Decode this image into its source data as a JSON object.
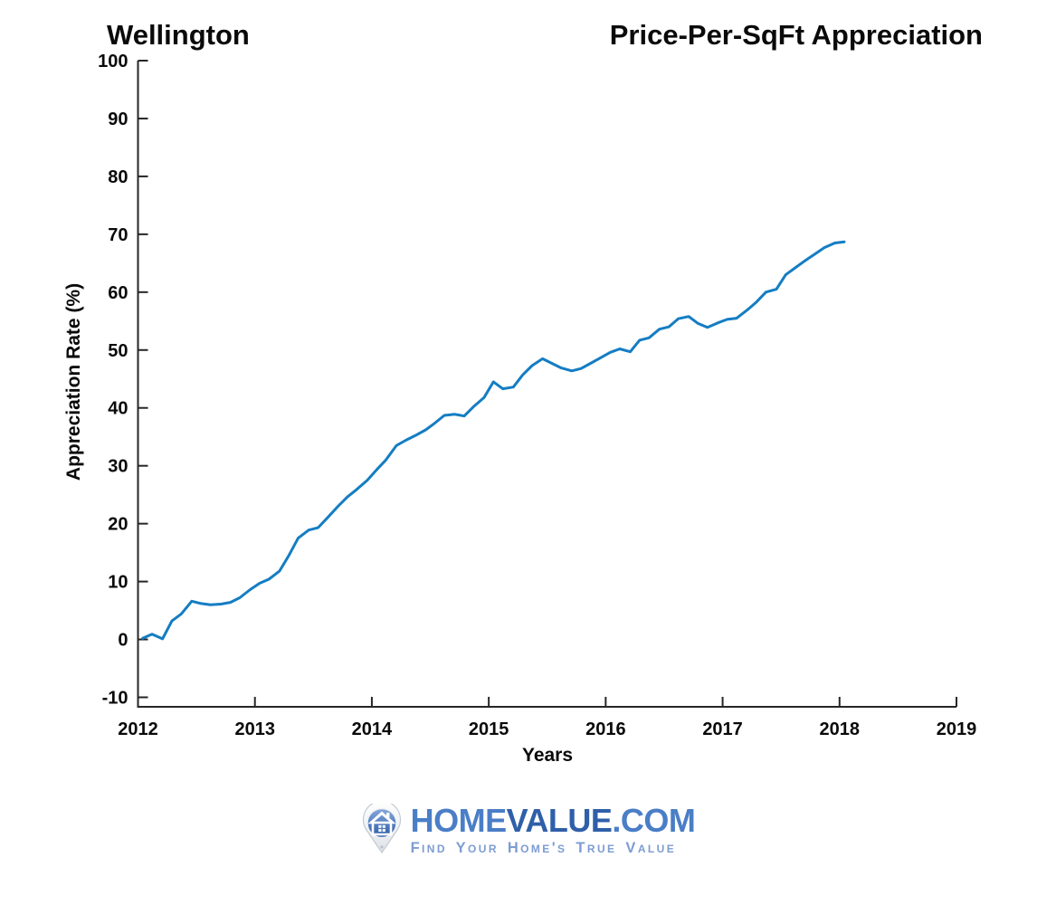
{
  "titles": {
    "left": "Wellington",
    "right": "Price-Per-SqFt Appreciation"
  },
  "axes": {
    "xlabel": "Years",
    "ylabel": "Appreciation Rate (%)"
  },
  "logo": {
    "home": "HOME",
    "value": "VALUE",
    "com": ".COM",
    "tagline": "Find Your Home's True Value"
  },
  "colors": {
    "line": "#147dc3",
    "axis": "#262626",
    "brand_light": "#4a7ec6",
    "brand_dark": "#2f5fa9",
    "tagline": "#7d9cd1"
  },
  "chart_data": {
    "type": "line",
    "title": "Wellington — Price-Per-SqFt Appreciation",
    "xlabel": "Years",
    "ylabel": "Appreciation Rate (%)",
    "xlim": [
      2012,
      2019
    ],
    "ylim": [
      -10,
      100
    ],
    "xticks": [
      2012,
      2013,
      2014,
      2015,
      2016,
      2017,
      2018,
      2019
    ],
    "yticks": [
      -10,
      0,
      10,
      20,
      30,
      40,
      50,
      60,
      70,
      80,
      90,
      100
    ],
    "grid": false,
    "legend": null,
    "series": [
      {
        "name": "Wellington price-per-sqft appreciation (%)",
        "x": [
          2012.04,
          2012.12,
          2012.21,
          2012.29,
          2012.37,
          2012.46,
          2012.54,
          2012.62,
          2012.71,
          2012.79,
          2012.87,
          2012.96,
          2013.04,
          2013.12,
          2013.21,
          2013.29,
          2013.37,
          2013.46,
          2013.54,
          2013.62,
          2013.71,
          2013.79,
          2013.87,
          2013.96,
          2014.04,
          2014.12,
          2014.21,
          2014.29,
          2014.37,
          2014.46,
          2014.54,
          2014.62,
          2014.71,
          2014.79,
          2014.87,
          2014.96,
          2015.04,
          2015.12,
          2015.21,
          2015.29,
          2015.37,
          2015.46,
          2015.54,
          2015.62,
          2015.71,
          2015.79,
          2015.87,
          2015.96,
          2016.04,
          2016.12,
          2016.21,
          2016.29,
          2016.37,
          2016.46,
          2016.54,
          2016.62,
          2016.71,
          2016.79,
          2016.87,
          2016.96,
          2017.04,
          2017.12,
          2017.21,
          2017.29,
          2017.37,
          2017.46,
          2017.54,
          2017.62,
          2017.71,
          2017.79,
          2017.87,
          2017.96,
          2018.04
        ],
        "y": [
          0.2,
          0.9,
          0.1,
          3.2,
          4.4,
          6.6,
          6.2,
          6.0,
          6.1,
          6.4,
          7.2,
          8.6,
          9.7,
          10.4,
          11.8,
          14.5,
          17.5,
          18.9,
          19.3,
          21.0,
          23.0,
          24.6,
          25.9,
          27.5,
          29.3,
          31.0,
          33.5,
          34.4,
          35.2,
          36.2,
          37.4,
          38.7,
          38.9,
          38.6,
          40.2,
          41.8,
          44.5,
          43.3,
          43.6,
          45.7,
          47.3,
          48.5,
          47.7,
          46.9,
          46.4,
          46.8,
          47.7,
          48.7,
          49.6,
          50.2,
          49.7,
          51.7,
          52.1,
          53.6,
          54.0,
          55.4,
          55.8,
          54.6,
          53.9,
          54.7,
          55.3,
          55.5,
          56.9,
          58.3,
          60.0,
          60.5,
          63.0,
          64.2,
          65.5,
          66.6,
          67.7,
          68.5,
          68.7
        ]
      }
    ]
  }
}
